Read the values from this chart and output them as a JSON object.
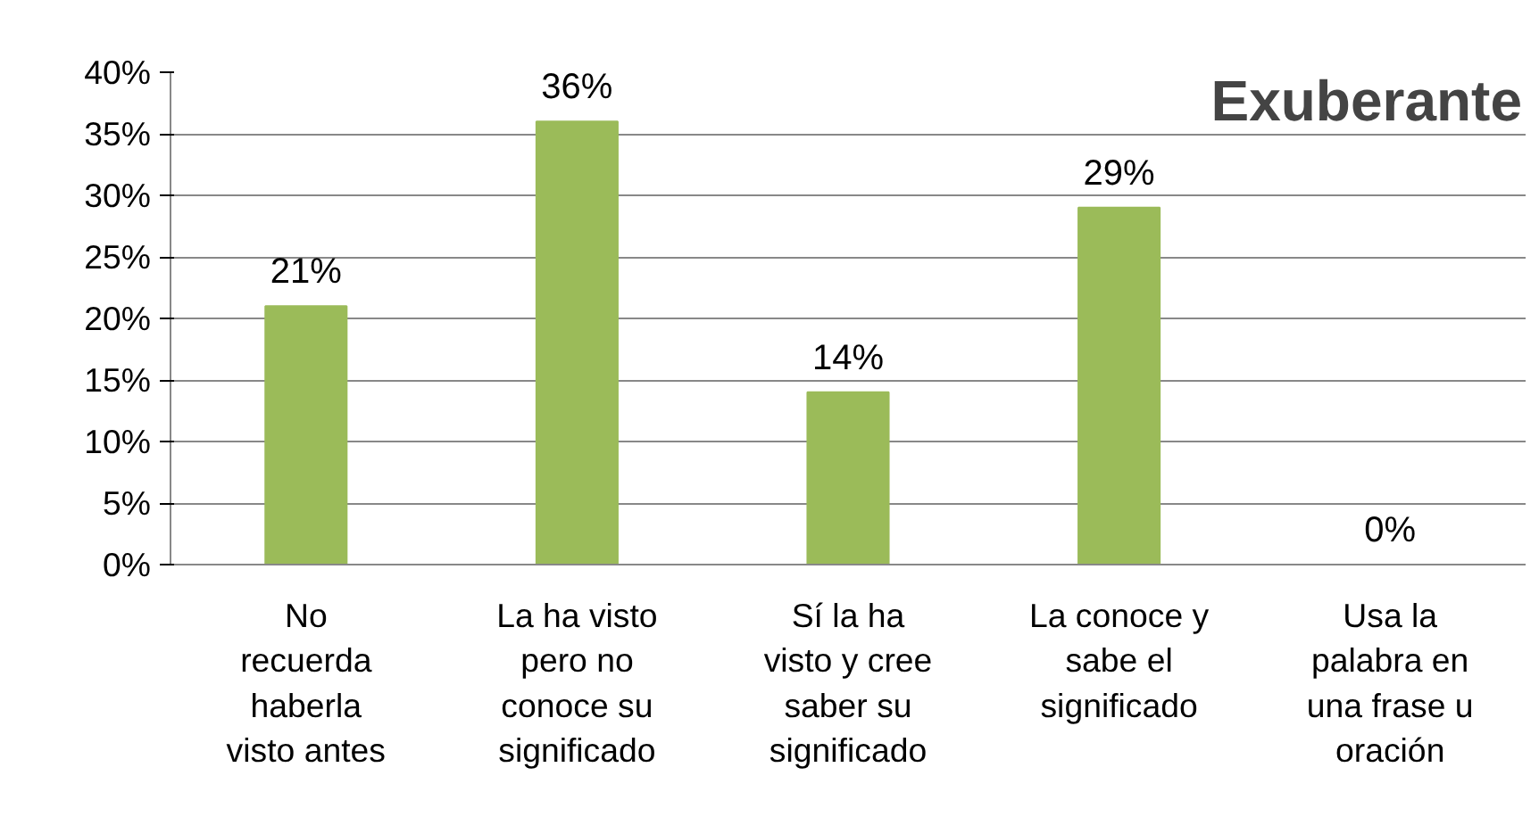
{
  "chart_data": {
    "type": "bar",
    "title": "Exuberante",
    "categories": [
      "No\nrecuerda\nhaberla\nvisto antes",
      "La ha visto\npero no\nconoce su\nsignificado",
      "Sí la ha\nvisto y cree\nsaber su\nsignificado",
      "La conoce y\nsabe el\nsignificado",
      "Usa la\npalabra en\nuna frase u\noración"
    ],
    "values": [
      21,
      36,
      14,
      29,
      0
    ],
    "color": "#9bbb59",
    "data_labels": true,
    "value_labels": [
      "21%",
      "36%",
      "14%",
      "29%",
      "0%"
    ],
    "ylim": [
      0,
      40
    ],
    "yticks": [
      {
        "value": 0,
        "label": "0%"
      },
      {
        "value": 5,
        "label": "5%"
      },
      {
        "value": 10,
        "label": "10%"
      },
      {
        "value": 15,
        "label": "15%"
      },
      {
        "value": 20,
        "label": "20%"
      },
      {
        "value": 25,
        "label": "25%"
      },
      {
        "value": 30,
        "label": "30%"
      },
      {
        "value": 35,
        "label": "35%"
      },
      {
        "value": 40,
        "label": "40%"
      }
    ],
    "grid": "y"
  }
}
